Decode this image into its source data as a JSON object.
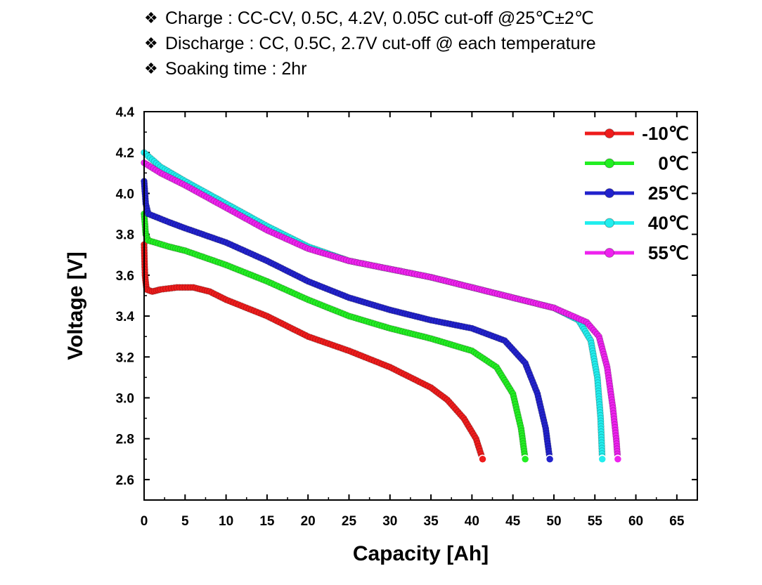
{
  "notes": [
    {
      "bullet": "❖",
      "text": "Charge : CC-CV, 0.5C, 4.2V, 0.05C cut-off @25℃±2℃"
    },
    {
      "bullet": "❖",
      "text": "Discharge : CC, 0.5C, 2.7V cut-off @ each temperature"
    },
    {
      "bullet": "❖",
      "text": "Soaking time : 2hr"
    }
  ],
  "chart_data": {
    "type": "line",
    "xlabel": "Capacity [Ah]",
    "ylabel": "Voltage [V]",
    "xlim": [
      0,
      67.5
    ],
    "ylim": [
      2.5,
      4.4
    ],
    "x_ticks": [
      0,
      5,
      10,
      15,
      20,
      25,
      30,
      35,
      40,
      45,
      50,
      55,
      60,
      65
    ],
    "y_ticks": [
      2.6,
      2.8,
      3.0,
      3.2,
      3.4,
      3.6,
      3.8,
      4.0,
      4.2,
      4.4
    ],
    "legend_position": "top-right",
    "grid": false,
    "series": [
      {
        "name": "-10℃",
        "color": "#ee1c1c",
        "points": [
          [
            0,
            3.75
          ],
          [
            0.1,
            3.6
          ],
          [
            0.3,
            3.53
          ],
          [
            1,
            3.52
          ],
          [
            2,
            3.53
          ],
          [
            4,
            3.54
          ],
          [
            6,
            3.54
          ],
          [
            8,
            3.52
          ],
          [
            10,
            3.48
          ],
          [
            15,
            3.4
          ],
          [
            20,
            3.3
          ],
          [
            25,
            3.23
          ],
          [
            30,
            3.15
          ],
          [
            35,
            3.05
          ],
          [
            37,
            2.99
          ],
          [
            39,
            2.9
          ],
          [
            40.5,
            2.8
          ],
          [
            41.3,
            2.7
          ]
        ]
      },
      {
        "name": "0℃",
        "color": "#22ee22",
        "points": [
          [
            0,
            3.9
          ],
          [
            0.2,
            3.8
          ],
          [
            0.5,
            3.77
          ],
          [
            3,
            3.74
          ],
          [
            5,
            3.72
          ],
          [
            10,
            3.65
          ],
          [
            15,
            3.57
          ],
          [
            20,
            3.48
          ],
          [
            25,
            3.4
          ],
          [
            30,
            3.34
          ],
          [
            35,
            3.29
          ],
          [
            40,
            3.23
          ],
          [
            43,
            3.15
          ],
          [
            45,
            3.02
          ],
          [
            46,
            2.85
          ],
          [
            46.5,
            2.7
          ]
        ]
      },
      {
        "name": "25℃",
        "color": "#2222cc",
        "points": [
          [
            0,
            4.06
          ],
          [
            0.2,
            3.95
          ],
          [
            0.5,
            3.9
          ],
          [
            3,
            3.86
          ],
          [
            5,
            3.83
          ],
          [
            10,
            3.76
          ],
          [
            15,
            3.67
          ],
          [
            20,
            3.57
          ],
          [
            25,
            3.49
          ],
          [
            30,
            3.43
          ],
          [
            35,
            3.38
          ],
          [
            40,
            3.34
          ],
          [
            44,
            3.28
          ],
          [
            46.5,
            3.17
          ],
          [
            48,
            3.02
          ],
          [
            49,
            2.85
          ],
          [
            49.5,
            2.7
          ]
        ]
      },
      {
        "name": "40℃",
        "color": "#22eeee",
        "points": [
          [
            0,
            4.2
          ],
          [
            2,
            4.13
          ],
          [
            5,
            4.06
          ],
          [
            10,
            3.95
          ],
          [
            15,
            3.84
          ],
          [
            20,
            3.74
          ],
          [
            25,
            3.67
          ],
          [
            30,
            3.63
          ],
          [
            35,
            3.59
          ],
          [
            40,
            3.54
          ],
          [
            45,
            3.49
          ],
          [
            50,
            3.44
          ],
          [
            53,
            3.38
          ],
          [
            54.5,
            3.28
          ],
          [
            55.3,
            3.1
          ],
          [
            55.7,
            2.9
          ],
          [
            55.9,
            2.7
          ]
        ]
      },
      {
        "name": "55℃",
        "color": "#ee22ee",
        "points": [
          [
            0,
            4.15
          ],
          [
            2,
            4.1
          ],
          [
            5,
            4.04
          ],
          [
            10,
            3.93
          ],
          [
            15,
            3.82
          ],
          [
            20,
            3.73
          ],
          [
            25,
            3.67
          ],
          [
            30,
            3.63
          ],
          [
            35,
            3.59
          ],
          [
            40,
            3.54
          ],
          [
            45,
            3.49
          ],
          [
            50,
            3.44
          ],
          [
            54,
            3.37
          ],
          [
            55.5,
            3.3
          ],
          [
            56.5,
            3.15
          ],
          [
            57.2,
            2.95
          ],
          [
            57.6,
            2.8
          ],
          [
            57.8,
            2.7
          ]
        ]
      }
    ]
  }
}
